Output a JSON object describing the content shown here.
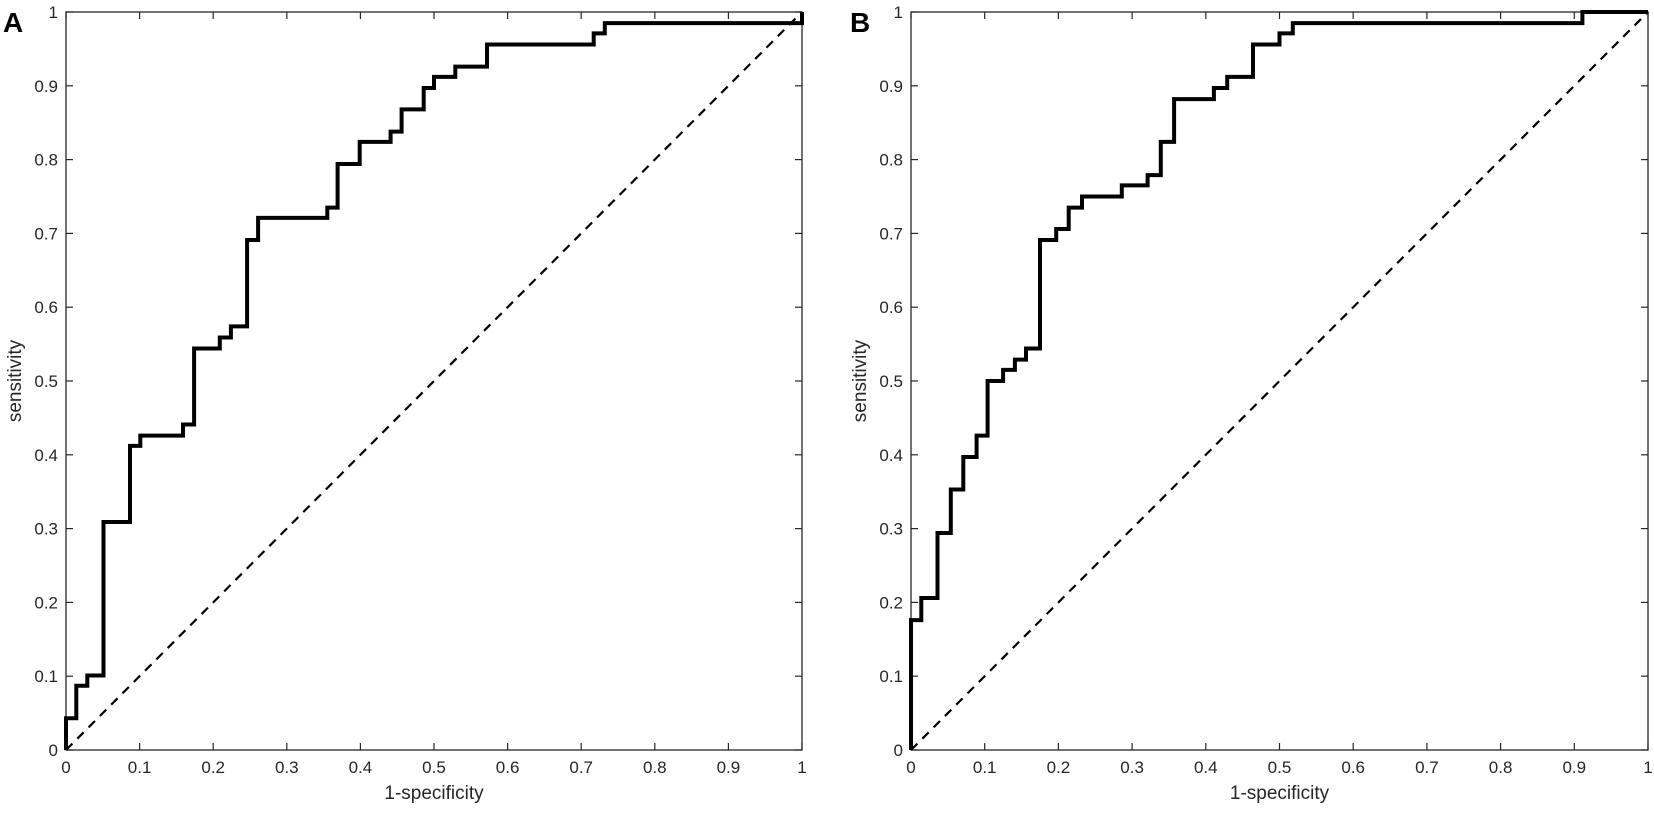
{
  "chart_data": [
    {
      "panel": "A",
      "type": "line",
      "xlabel": "1-specificity",
      "ylabel": "sensitivity",
      "xlim": [
        0,
        1
      ],
      "ylim": [
        0,
        1
      ],
      "xticks": [
        "0",
        "0.1",
        "0.2",
        "0.3",
        "0.4",
        "0.5",
        "0.6",
        "0.7",
        "0.8",
        "0.9",
        "1"
      ],
      "yticks": [
        "0",
        "0.1",
        "0.2",
        "0.3",
        "0.4",
        "0.5",
        "0.6",
        "0.7",
        "0.8",
        "0.9",
        "1"
      ],
      "grid": false,
      "reference_line": {
        "style": "dashed",
        "x": [
          0,
          1
        ],
        "y": [
          0,
          1
        ]
      },
      "roc": {
        "x": [
          0,
          0,
          0.014,
          0.014,
          0.029,
          0.029,
          0.051,
          0.051,
          0.087,
          0.087,
          0.101,
          0.101,
          0.159,
          0.159,
          0.174,
          0.174,
          0.209,
          0.209,
          0.224,
          0.224,
          0.246,
          0.246,
          0.261,
          0.261,
          0.355,
          0.355,
          0.369,
          0.369,
          0.399,
          0.399,
          0.441,
          0.441,
          0.456,
          0.456,
          0.486,
          0.486,
          0.5,
          0.5,
          0.529,
          0.529,
          0.572,
          0.572,
          0.717,
          0.717,
          0.732,
          0.732,
          1,
          1
        ],
        "y": [
          0,
          0.043,
          0.043,
          0.087,
          0.087,
          0.101,
          0.101,
          0.309,
          0.309,
          0.412,
          0.412,
          0.426,
          0.426,
          0.441,
          0.441,
          0.544,
          0.544,
          0.559,
          0.559,
          0.574,
          0.574,
          0.691,
          0.691,
          0.721,
          0.721,
          0.735,
          0.735,
          0.794,
          0.794,
          0.824,
          0.824,
          0.838,
          0.838,
          0.868,
          0.868,
          0.897,
          0.897,
          0.912,
          0.912,
          0.926,
          0.926,
          0.956,
          0.956,
          0.971,
          0.971,
          0.985,
          0.985,
          1
        ]
      }
    },
    {
      "panel": "B",
      "type": "line",
      "xlabel": "1-specificity",
      "ylabel": "sensitivity",
      "xlim": [
        0,
        1
      ],
      "ylim": [
        0,
        1
      ],
      "xticks": [
        "0",
        "0.1",
        "0.2",
        "0.3",
        "0.4",
        "0.5",
        "0.6",
        "0.7",
        "0.8",
        "0.9",
        "1"
      ],
      "yticks": [
        "0",
        "0.1",
        "0.2",
        "0.3",
        "0.4",
        "0.5",
        "0.6",
        "0.7",
        "0.8",
        "0.9",
        "1"
      ],
      "grid": false,
      "reference_line": {
        "style": "dashed",
        "x": [
          0,
          1
        ],
        "y": [
          0,
          1
        ]
      },
      "roc": {
        "x": [
          0,
          0,
          0.014,
          0.014,
          0.036,
          0.036,
          0.054,
          0.054,
          0.071,
          0.071,
          0.089,
          0.089,
          0.104,
          0.104,
          0.125,
          0.125,
          0.141,
          0.141,
          0.156,
          0.156,
          0.175,
          0.175,
          0.197,
          0.197,
          0.214,
          0.214,
          0.232,
          0.232,
          0.286,
          0.286,
          0.321,
          0.321,
          0.339,
          0.339,
          0.357,
          0.357,
          0.411,
          0.411,
          0.429,
          0.429,
          0.464,
          0.464,
          0.5,
          0.5,
          0.518,
          0.518,
          0.911,
          0.911,
          1
        ],
        "y": [
          0,
          0.176,
          0.176,
          0.206,
          0.206,
          0.294,
          0.294,
          0.353,
          0.353,
          0.397,
          0.397,
          0.426,
          0.426,
          0.5,
          0.5,
          0.515,
          0.515,
          0.529,
          0.529,
          0.544,
          0.544,
          0.691,
          0.691,
          0.706,
          0.706,
          0.735,
          0.735,
          0.75,
          0.75,
          0.765,
          0.765,
          0.779,
          0.779,
          0.824,
          0.824,
          0.882,
          0.882,
          0.897,
          0.897,
          0.912,
          0.912,
          0.956,
          0.956,
          0.971,
          0.971,
          0.985,
          0.985,
          1,
          1
        ]
      }
    }
  ]
}
